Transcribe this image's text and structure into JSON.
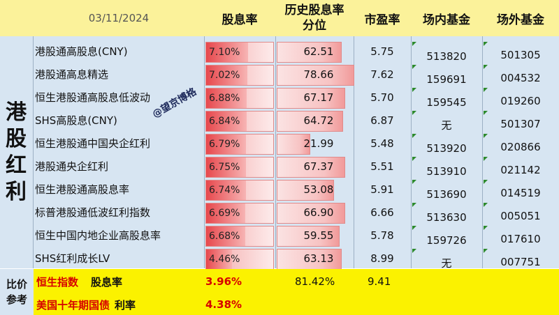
{
  "header": {
    "date": "03/11/2024",
    "yield": "股息率",
    "percentile_line1": "历史股息率",
    "percentile_line2": "分位",
    "pe": "市盈率",
    "etf": "场内基金",
    "otc": "场外基金"
  },
  "sector": {
    "chars": [
      "港",
      "股",
      "红",
      "利"
    ]
  },
  "watermark": "@望京博格",
  "rows": [
    {
      "name": "港股通高股息(CNY)",
      "yield": "7.10%",
      "percentile": "62.51",
      "pe": "5.75",
      "etf": "513820",
      "otc": "501305"
    },
    {
      "name": "港股通高息精选",
      "yield": "7.02%",
      "percentile": "78.66",
      "pe": "7.62",
      "etf": "159691",
      "otc": "004532"
    },
    {
      "name": "恒生港股通高股息低波动",
      "yield": "6.88%",
      "percentile": "67.17",
      "pe": "5.70",
      "etf": "159545",
      "otc": "019260"
    },
    {
      "name": "SHS高股息(CNY)",
      "yield": "6.84%",
      "percentile": "64.72",
      "pe": "6.87",
      "etf": "无",
      "otc": "501307"
    },
    {
      "name": "恒生港股通中国央企红利",
      "yield": "6.79%",
      "percentile": "21.99",
      "pe": "5.48",
      "etf": "513920",
      "otc": "020866"
    },
    {
      "name": "港股通央企红利",
      "yield": "6.75%",
      "percentile": "67.37",
      "pe": "5.51",
      "etf": "513910",
      "otc": "021142"
    },
    {
      "name": "恒生港股通高股息率",
      "yield": "6.74%",
      "percentile": "53.08",
      "pe": "5.91",
      "etf": "513690",
      "otc": "014519"
    },
    {
      "name": "标普港股通低波红利指数",
      "yield": "6.69%",
      "percentile": "66.90",
      "pe": "6.66",
      "etf": "513630",
      "otc": "005051"
    },
    {
      "name": "恒生中国内地企业高股息率",
      "yield": "6.68%",
      "percentile": "59.55",
      "pe": "5.78",
      "etf": "159726",
      "otc": "017610"
    },
    {
      "name": "SHS红利成长LV",
      "yield": "4.46%",
      "percentile": "63.13",
      "pe": "8.99",
      "etf": "无",
      "otc": "007751"
    }
  ],
  "reference": {
    "label_line1": "比价",
    "label_line2": "参考",
    "hsi_name": "恒生指数",
    "hsi_suffix": "股息率",
    "hsi_yield": "3.96%",
    "hsi_percentile": "81.42%",
    "hsi_pe": "9.41",
    "bond_name": "美国十年期国债",
    "bond_suffix": "利率",
    "bond_rate": "4.38%"
  },
  "colors": {
    "header_bg": "#fbf29a",
    "body_bg": "#d7e5f2",
    "footer_bg": "#fbf200",
    "accent_red": "#d60000",
    "marker_green": "#2d8a2d"
  }
}
